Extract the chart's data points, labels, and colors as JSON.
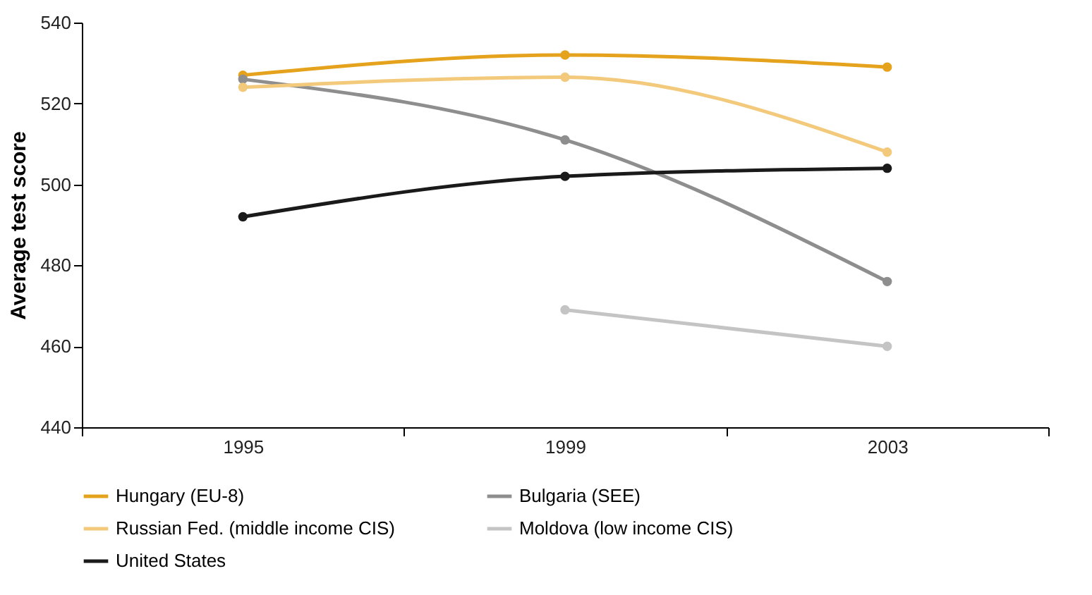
{
  "chart_data": {
    "type": "line",
    "ylabel": "Average test score",
    "categories": [
      "1995",
      "1999",
      "2003"
    ],
    "series": [
      {
        "name": "Hungary (EU-8)",
        "color": "#e5a21c",
        "values": [
          527,
          532,
          529
        ]
      },
      {
        "name": "Bulgaria (SEE)",
        "color": "#8e8e8e",
        "values": [
          526,
          511,
          476
        ]
      },
      {
        "name": "Russian Fed. (middle income CIS)",
        "color": "#f3c97c",
        "values": [
          524,
          526.5,
          508
        ]
      },
      {
        "name": "Moldova (low income CIS)",
        "color": "#c4c4c4",
        "values": [
          null,
          469,
          460
        ]
      },
      {
        "name": "United States",
        "color": "#1a1a1a",
        "values": [
          492,
          502,
          504
        ]
      }
    ],
    "ylim": [
      440,
      540
    ],
    "yticks": [
      440,
      460,
      480,
      500,
      520,
      540
    ],
    "grid": false,
    "legend": "bottom",
    "marker": "circle",
    "line_style": "solid"
  }
}
